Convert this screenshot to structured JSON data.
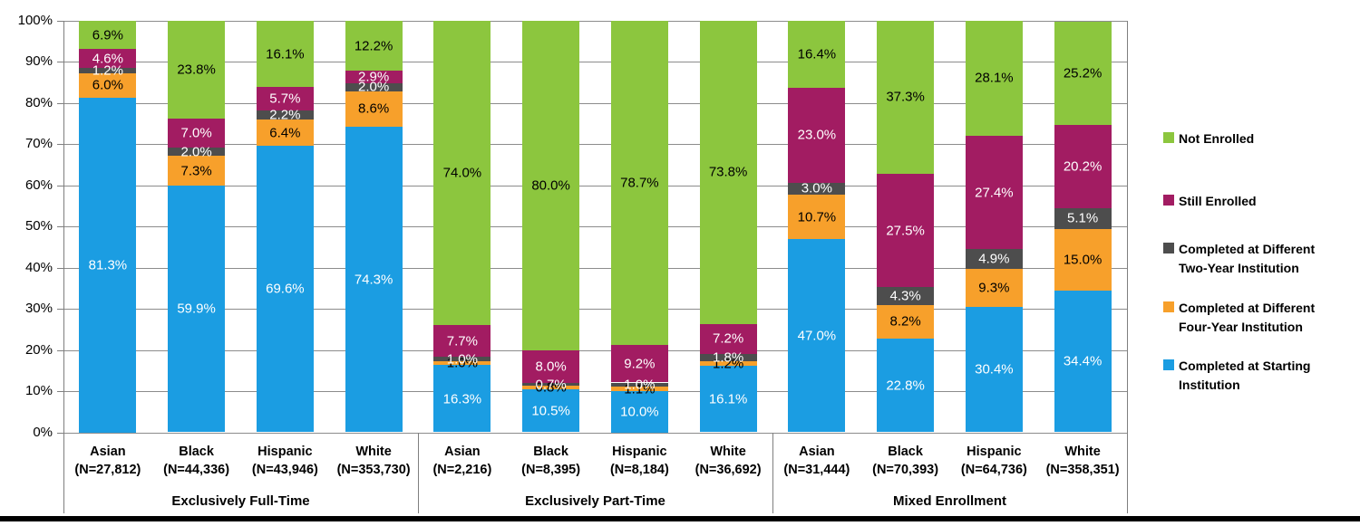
{
  "chart_data": {
    "type": "bar",
    "subtype": "100%-stacked-column",
    "title": "",
    "xlabel": "",
    "ylabel": "",
    "y_axis": {
      "min": 0,
      "max": 100,
      "step": 10,
      "ticks": [
        "0%",
        "10%",
        "20%",
        "30%",
        "40%",
        "50%",
        "60%",
        "70%",
        "80%",
        "90%",
        "100%"
      ],
      "grid": true
    },
    "legend_position": "right",
    "series": [
      {
        "name": "Completed at Starting Institution",
        "color": "#1B9DE2",
        "label_color": "#FFFFFF"
      },
      {
        "name": "Completed at Different Four-Year Institution",
        "color": "#F7A02B",
        "label_color": "#000000"
      },
      {
        "name": "Completed at Different Two-Year Institution",
        "color": "#4D4D4D",
        "label_color": "#FFFFFF"
      },
      {
        "name": "Still Enrolled",
        "color": "#A21C62",
        "label_color": "#FFFFFF"
      },
      {
        "name": "Not Enrolled",
        "color": "#8CC63E",
        "label_color": "#000000"
      }
    ],
    "legend_order": [
      "Not Enrolled",
      "Still Enrolled",
      "Completed at Different Two-Year Institution",
      "Completed at Different Four-Year Institution",
      "Completed at Starting Institution"
    ],
    "value_suffix": "%",
    "groups": [
      {
        "label": "Exclusively Full-Time",
        "categories": [
          {
            "label": "Asian",
            "sublabel": "(N=27,812)",
            "values": [
              81.3,
              6.0,
              1.2,
              4.6,
              6.9
            ]
          },
          {
            "label": "Black",
            "sublabel": "(N=44,336)",
            "values": [
              59.9,
              7.3,
              2.0,
              7.0,
              23.8
            ]
          },
          {
            "label": "Hispanic",
            "sublabel": "(N=43,946)",
            "values": [
              69.6,
              6.4,
              2.2,
              5.7,
              16.1
            ]
          },
          {
            "label": "White",
            "sublabel": "(N=353,730)",
            "values": [
              74.3,
              8.6,
              2.0,
              2.9,
              12.2
            ]
          }
        ]
      },
      {
        "label": "Exclusively Part-Time",
        "categories": [
          {
            "label": "Asian",
            "sublabel": "(N=2,216)",
            "values": [
              16.3,
              1.0,
              1.0,
              7.7,
              74.0
            ]
          },
          {
            "label": "Black",
            "sublabel": "(N=8,395)",
            "values": [
              10.5,
              0.8,
              0.7,
              8.0,
              80.0
            ]
          },
          {
            "label": "Hispanic",
            "sublabel": "(N=8,184)",
            "values": [
              10.0,
              1.1,
              1.0,
              9.2,
              78.7
            ]
          },
          {
            "label": "White",
            "sublabel": "(N=36,692)",
            "values": [
              16.1,
              1.2,
              1.8,
              7.2,
              73.8
            ]
          }
        ]
      },
      {
        "label": "Mixed Enrollment",
        "categories": [
          {
            "label": "Asian",
            "sublabel": "(N=31,444)",
            "values": [
              47.0,
              10.7,
              3.0,
              23.0,
              16.4
            ]
          },
          {
            "label": "Black",
            "sublabel": "(N=70,393)",
            "values": [
              22.8,
              8.2,
              4.3,
              27.5,
              37.3
            ]
          },
          {
            "label": "Hispanic",
            "sublabel": "(N=64,736)",
            "values": [
              30.4,
              9.3,
              4.9,
              27.4,
              28.1
            ]
          },
          {
            "label": "White",
            "sublabel": "(N=358,351)",
            "values": [
              34.4,
              15.0,
              5.1,
              20.2,
              25.2
            ]
          }
        ]
      }
    ]
  },
  "colors": {
    "background": "#FFFFFF",
    "gridline": "#8C8C8C",
    "axis_line": "#7F7F7F",
    "bottom_rule": "#000000"
  }
}
